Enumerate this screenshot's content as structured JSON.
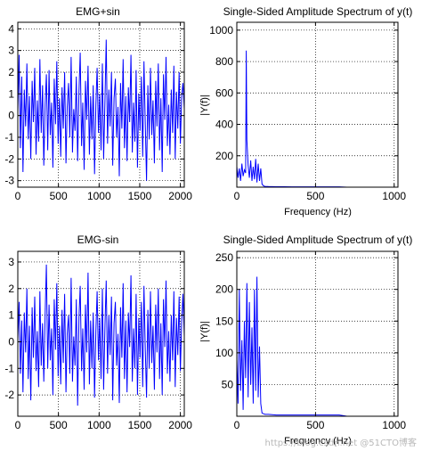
{
  "chart_data": [
    {
      "type": "line",
      "title": "EMG+sin",
      "xlabel": "",
      "ylabel": "",
      "xlim": [
        0,
        2048
      ],
      "ylim": [
        -3.3,
        4.3
      ],
      "x_ticks": [
        0,
        500,
        1000,
        1500,
        2000
      ],
      "y_ticks": [
        -3,
        -2,
        -1,
        0,
        1,
        2,
        3,
        4
      ],
      "grid": true,
      "color": "#0000ff",
      "series": [
        {
          "x": [
            0,
            16,
            32,
            48,
            64,
            80,
            96,
            112,
            128,
            144,
            160,
            176,
            192,
            208,
            224,
            240,
            256,
            272,
            288,
            304,
            320,
            336,
            352,
            368,
            384,
            400,
            416,
            432,
            448,
            464,
            480,
            496,
            512,
            528,
            544,
            560,
            576,
            592,
            608,
            624,
            640,
            656,
            672,
            688,
            704,
            720,
            736,
            752,
            768,
            784,
            800,
            816,
            832,
            848,
            864,
            880,
            896,
            912,
            928,
            944,
            960,
            976,
            992,
            1008,
            1024,
            1040,
            1056,
            1072,
            1088,
            1104,
            1120,
            1136,
            1152,
            1168,
            1184,
            1200,
            1216,
            1232,
            1248,
            1264,
            1280,
            1296,
            1312,
            1328,
            1344,
            1360,
            1376,
            1392,
            1408,
            1424,
            1440,
            1456,
            1472,
            1488,
            1504,
            1520,
            1536,
            1552,
            1568,
            1584,
            1600,
            1616,
            1632,
            1648,
            1664,
            1680,
            1696,
            1712,
            1728,
            1744,
            1760,
            1776,
            1792,
            1808,
            1824,
            1840,
            1856,
            1872,
            1888,
            1904,
            1920,
            1936,
            1952,
            1968,
            1984,
            2000,
            2016,
            2032,
            2048
          ],
          "y": [
            0.2,
            2.8,
            -1.5,
            1.8,
            -2.6,
            1.2,
            -0.5,
            2.4,
            -1.1,
            0.9,
            -2.0,
            1.6,
            -0.3,
            2.2,
            -1.8,
            0.7,
            -1.2,
            2.6,
            -0.8,
            1.4,
            -2.3,
            0.5,
            1.9,
            -1.6,
            2.1,
            -0.9,
            0.6,
            -2.4,
            1.7,
            -0.4,
            2.5,
            -1.3,
            0.8,
            -1.9,
            1.3,
            -0.6,
            2.0,
            -2.2,
            0.4,
            1.5,
            -1.0,
            2.7,
            -1.7,
            0.3,
            -0.7,
            1.8,
            -2.1,
            1.1,
            2.9,
            -1.4,
            0.6,
            -2.5,
            1.6,
            -0.2,
            2.3,
            -1.8,
            0.9,
            -1.1,
            1.4,
            -2.7,
            0.5,
            2.2,
            -0.8,
            1.0,
            -1.6,
            2.4,
            -2.0,
            0.7,
            3.5,
            -1.3,
            1.2,
            -0.5,
            2.0,
            -2.3,
            0.8,
            1.7,
            -1.0,
            0.4,
            -2.8,
            1.5,
            -0.6,
            2.6,
            -1.5,
            0.9,
            -2.1,
            1.3,
            -0.3,
            2.8,
            -1.7,
            0.6,
            -1.2,
            2.1,
            -2.4,
            1.0,
            -0.7,
            1.8,
            -1.9,
            2.5,
            -0.4,
            -3.0,
            1.4,
            -1.1,
            2.2,
            -0.9,
            0.7,
            -2.2,
            1.6,
            -0.5,
            2.4,
            -1.6,
            0.8,
            -2.6,
            1.9,
            -0.2,
            2.7,
            -1.4,
            0.5,
            -1.8,
            1.2,
            -0.8,
            2.3,
            -2.0,
            1.1,
            -0.6,
            2.0,
            -1.3,
            0.9,
            1.5,
            0.3
          ]
        }
      ]
    },
    {
      "type": "line",
      "title": "Single-Sided Amplitude Spectrum of y(t)",
      "xlabel": "Frequency (Hz)",
      "ylabel": "|Y(f)|",
      "xlim": [
        0,
        1024
      ],
      "ylim": [
        0,
        1050
      ],
      "x_ticks": [
        0,
        500,
        1000
      ],
      "y_ticks": [
        200,
        400,
        600,
        800,
        1000
      ],
      "grid": true,
      "color": "#0000ff",
      "series": [
        {
          "x": [
            0,
            8,
            16,
            24,
            32,
            40,
            48,
            56,
            60,
            64,
            72,
            80,
            88,
            96,
            104,
            112,
            120,
            128,
            136,
            144,
            152,
            160,
            170,
            180,
            200,
            250,
            300,
            350,
            400,
            450,
            500,
            550,
            600,
            650,
            700
          ],
          "y": [
            130,
            60,
            120,
            40,
            150,
            70,
            110,
            90,
            870,
            300,
            140,
            60,
            170,
            40,
            130,
            50,
            180,
            30,
            150,
            40,
            120,
            20,
            8,
            5,
            4,
            3,
            3,
            2,
            2,
            2,
            2,
            2,
            2,
            2,
            0
          ]
        }
      ]
    },
    {
      "type": "line",
      "title": "EMG-sin",
      "xlabel": "",
      "ylabel": "",
      "xlim": [
        0,
        2048
      ],
      "ylim": [
        -2.8,
        3.4
      ],
      "x_ticks": [
        0,
        500,
        1000,
        1500,
        2000
      ],
      "y_ticks": [
        -2,
        -1,
        0,
        1,
        2,
        3
      ],
      "grid": true,
      "color": "#0000ff",
      "series": [
        {
          "x": [
            0,
            16,
            32,
            48,
            64,
            80,
            96,
            112,
            128,
            144,
            160,
            176,
            192,
            208,
            224,
            240,
            256,
            272,
            288,
            304,
            320,
            336,
            352,
            368,
            384,
            400,
            416,
            432,
            448,
            464,
            480,
            496,
            512,
            528,
            544,
            560,
            576,
            592,
            608,
            624,
            640,
            656,
            672,
            688,
            704,
            720,
            736,
            752,
            768,
            784,
            800,
            816,
            832,
            848,
            864,
            880,
            896,
            912,
            928,
            944,
            960,
            976,
            992,
            1008,
            1024,
            1040,
            1056,
            1072,
            1088,
            1104,
            1120,
            1136,
            1152,
            1168,
            1184,
            1200,
            1216,
            1232,
            1248,
            1264,
            1280,
            1296,
            1312,
            1328,
            1344,
            1360,
            1376,
            1392,
            1408,
            1424,
            1440,
            1456,
            1472,
            1488,
            1504,
            1520,
            1536,
            1552,
            1568,
            1584,
            1600,
            1616,
            1632,
            1648,
            1664,
            1680,
            1696,
            1712,
            1728,
            1744,
            1760,
            1776,
            1792,
            1808,
            1824,
            1840,
            1856,
            1872,
            1888,
            1904,
            1920,
            1936,
            1952,
            1968,
            1984,
            2000,
            2016,
            2032,
            2048
          ],
          "y": [
            0.1,
            1.5,
            -1.2,
            0.8,
            -1.9,
            1.1,
            -0.4,
            2.0,
            -1.4,
            0.6,
            -2.2,
            1.3,
            -0.6,
            1.7,
            -1.1,
            0.4,
            -1.7,
            1.9,
            -0.9,
            0.7,
            -1.5,
            1.0,
            2.9,
            -1.0,
            1.4,
            -0.7,
            0.5,
            -2.0,
            1.6,
            -0.3,
            2.2,
            -1.3,
            0.6,
            -1.6,
            1.2,
            -0.8,
            1.8,
            -1.9,
            0.3,
            1.0,
            -1.2,
            2.4,
            -1.5,
            0.2,
            -0.9,
            1.6,
            -2.4,
            0.9,
            2.1,
            -1.1,
            0.5,
            -1.8,
            1.4,
            -0.4,
            2.6,
            -1.6,
            0.8,
            -1.0,
            1.1,
            -2.1,
            0.4,
            1.9,
            -0.7,
            0.9,
            -1.4,
            2.0,
            -1.8,
            0.6,
            2.3,
            -1.2,
            1.0,
            -0.5,
            1.7,
            -2.2,
            0.7,
            1.5,
            -0.9,
            0.3,
            -2.3,
            1.3,
            -0.6,
            2.2,
            -1.4,
            0.8,
            -1.9,
            1.1,
            -0.2,
            2.5,
            -1.5,
            0.5,
            -1.0,
            1.8,
            -2.0,
            0.9,
            -0.6,
            1.5,
            -1.7,
            2.1,
            -0.3,
            -2.1,
            1.2,
            -1.0,
            1.9,
            -0.8,
            0.6,
            -1.8,
            1.4,
            -0.4,
            2.0,
            -1.4,
            0.7,
            -2.0,
            1.6,
            -0.2,
            2.3,
            -1.2,
            0.4,
            -1.5,
            1.0,
            -0.7,
            1.9,
            -1.7,
            0.9,
            -0.5,
            1.7,
            -1.1,
            0.8,
            1.8,
            0.2
          ]
        }
      ]
    },
    {
      "type": "line",
      "title": "Single-Sided Amplitude Spectrum of y(t)",
      "xlabel": "Frequency (Hz)",
      "ylabel": "|Y(f)|",
      "xlim": [
        0,
        1024
      ],
      "ylim": [
        0,
        260
      ],
      "x_ticks": [
        0,
        500,
        1000
      ],
      "y_ticks": [
        50,
        100,
        150,
        200,
        250
      ],
      "grid": true,
      "color": "#0000ff",
      "series": [
        {
          "x": [
            0,
            8,
            16,
            24,
            32,
            40,
            48,
            56,
            64,
            72,
            80,
            88,
            96,
            104,
            112,
            120,
            128,
            136,
            144,
            152,
            160,
            170,
            180,
            200,
            250,
            300,
            350,
            400,
            450,
            500,
            550,
            600,
            650,
            700
          ],
          "y": [
            90,
            20,
            200,
            40,
            120,
            10,
            150,
            60,
            210,
            30,
            180,
            50,
            140,
            20,
            200,
            40,
            220,
            30,
            110,
            20,
            5,
            4,
            3,
            3,
            2,
            2,
            2,
            2,
            2,
            2,
            2,
            2,
            2,
            0
          ]
        }
      ]
    }
  ],
  "watermark": "https://blog.csdn.net @51CTO博客"
}
